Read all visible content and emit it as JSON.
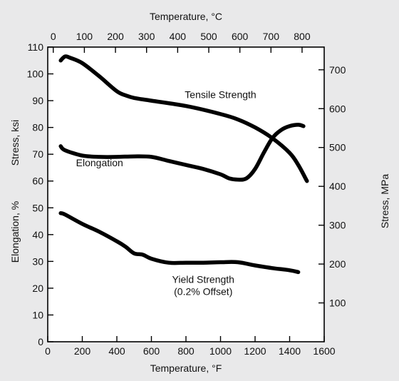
{
  "colors": {
    "background": "#e9e9ea",
    "plot": "#ffffff",
    "ink": "#000000"
  },
  "chart_data": {
    "type": "line",
    "title": "",
    "grid": false,
    "x_axis_bottom": {
      "label": "Temperature, °F",
      "range": [
        0,
        1600
      ],
      "ticks": [
        0,
        200,
        400,
        600,
        800,
        1000,
        1200,
        1400,
        1600
      ],
      "tick_labels": [
        "0",
        "200",
        "400",
        "600",
        "800",
        "1000",
        "1200",
        "1400",
        "1600"
      ]
    },
    "x_axis_top": {
      "label": "Temperature, °C",
      "ticks": [
        0,
        100,
        200,
        300,
        400,
        500,
        600,
        700,
        800
      ],
      "tick_labels": [
        "0",
        "100",
        "200",
        "300",
        "400",
        "500",
        "600",
        "700",
        "800"
      ]
    },
    "y_axis_left": {
      "label_upper": "Stress, ksi",
      "label_lower": "Elongation, %",
      "range": [
        0,
        110
      ],
      "ticks": [
        0,
        10,
        20,
        30,
        40,
        50,
        60,
        70,
        80,
        90,
        100,
        110
      ],
      "tick_labels": [
        "0",
        "10",
        "20",
        "30",
        "40",
        "50",
        "60",
        "70",
        "80",
        "90",
        "100",
        "110"
      ]
    },
    "y_axis_right": {
      "label": "Stress, MPa",
      "ticks": [
        100,
        200,
        300,
        400,
        500,
        600,
        700
      ],
      "tick_labels": [
        "100",
        "200",
        "300",
        "400",
        "500",
        "600",
        "700"
      ]
    },
    "series": [
      {
        "name": "Tensile Strength",
        "x": [
          75,
          100,
          130,
          200,
          300,
          400,
          450,
          500,
          600,
          800,
          1000,
          1100,
          1200,
          1300,
          1400,
          1450,
          1500
        ],
        "y": [
          105,
          106.5,
          106,
          104,
          99,
          93.5,
          92,
          91,
          90,
          88,
          85,
          83,
          80,
          76,
          70.5,
          66,
          60
        ]
      },
      {
        "name": "Elongation",
        "x": [
          75,
          100,
          200,
          300,
          400,
          500,
          600,
          700,
          800,
          900,
          1000,
          1050,
          1100,
          1150,
          1200,
          1250,
          1300,
          1350,
          1400,
          1450,
          1480
        ],
        "y": [
          73,
          71.5,
          69.5,
          69,
          69,
          69.2,
          69,
          67.5,
          66,
          64.5,
          62.5,
          61,
          60.5,
          61,
          64.5,
          70.5,
          76,
          79,
          80.5,
          81,
          80.5
        ]
      },
      {
        "name": "Yield Strength (0.2% Offset)",
        "x": [
          75,
          100,
          200,
          300,
          400,
          450,
          500,
          550,
          600,
          700,
          800,
          900,
          1000,
          1100,
          1200,
          1300,
          1400,
          1450
        ],
        "y": [
          48,
          47.5,
          44,
          41,
          37.5,
          35.5,
          33,
          32.5,
          31,
          29.5,
          29.5,
          29.5,
          29.7,
          29.7,
          28.5,
          27.5,
          26.7,
          26
        ]
      }
    ],
    "annotations": [
      {
        "text": "Tensile Strength",
        "x": 1000,
        "y": 91
      },
      {
        "text": "Elongation",
        "x": 300,
        "y": 65.5
      },
      {
        "text": "Yield Strength",
        "x": 900,
        "y": 22
      },
      {
        "text": "(0.2% Offset)",
        "x": 900,
        "y": 17.5
      }
    ]
  }
}
